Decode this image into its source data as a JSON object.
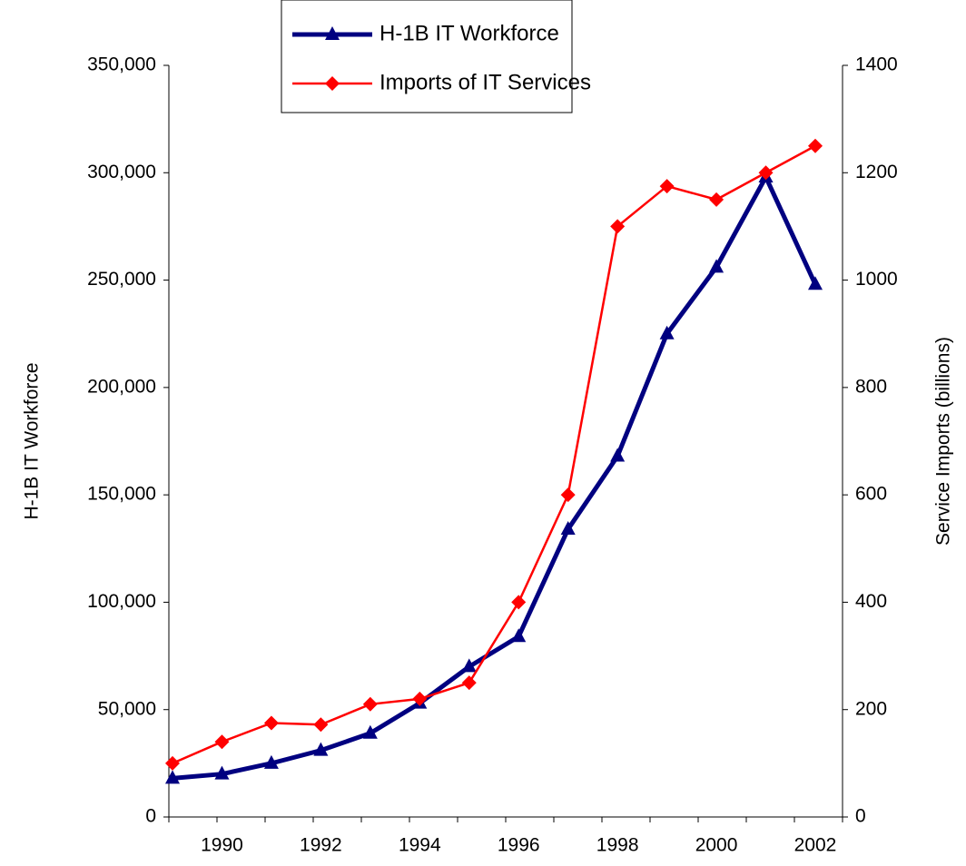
{
  "chart_data": {
    "type": "line",
    "categories": [
      null,
      "1990",
      null,
      "1992",
      null,
      "1994",
      null,
      "1996",
      null,
      "1998",
      null,
      "2000",
      null,
      "2002"
    ],
    "ylabel": "H-1B IT Workforce",
    "y2label": "Service Imports (billions)",
    "series": [
      {
        "name": "H-1B IT Workforce",
        "color": "#000080",
        "marker": "triangle",
        "values": [
          18000,
          20000,
          25000,
          31000,
          39000,
          53000,
          70000,
          84000,
          134000,
          168000,
          225000,
          256000,
          298000,
          248000
        ]
      },
      {
        "name": "Imports of IT Services",
        "color": "#ff0000",
        "marker": "diamond",
        "axis": "y2",
        "values": [
          100,
          140,
          175,
          172,
          210,
          220,
          250,
          400,
          600,
          1100,
          1175,
          1150,
          1200,
          1250
        ]
      }
    ],
    "ylim": [
      0,
      350000
    ],
    "yticks": [
      0,
      {
        "value": 50000,
        "label": "50,000"
      },
      {
        "value": 100000,
        "label": "100,000"
      },
      {
        "value": 150000,
        "label": "150,000"
      },
      {
        "value": 200000,
        "label": "200,000"
      },
      {
        "value": 250000,
        "label": "250,000"
      },
      {
        "value": 300000,
        "label": "300,000"
      },
      {
        "value": 350000,
        "label": "350,000"
      }
    ],
    "y2lim": [
      0,
      1400
    ],
    "y2ticks": [
      0,
      200,
      400,
      600,
      800,
      1000,
      1200,
      1400
    ],
    "legend": "top"
  }
}
